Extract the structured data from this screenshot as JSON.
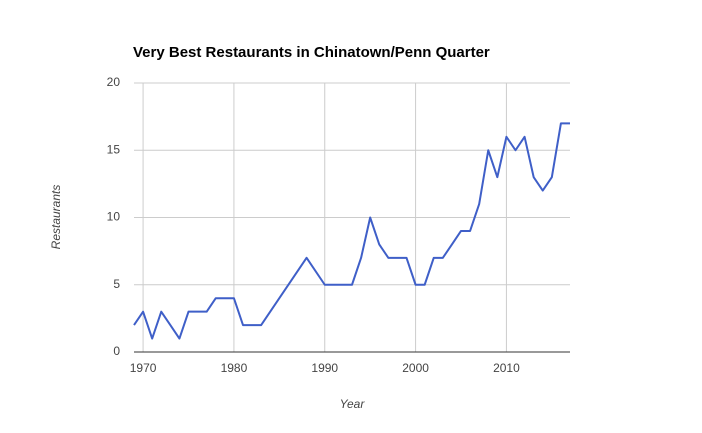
{
  "chart_data": {
    "type": "line",
    "title": "Very Best Restaurants in Chinatown/Penn Quarter",
    "x_label": "Year",
    "y_label": "Restaurants",
    "x": [
      1969,
      1970,
      1971,
      1972,
      1973,
      1974,
      1975,
      1976,
      1977,
      1978,
      1979,
      1980,
      1981,
      1982,
      1983,
      1988,
      1990,
      1991,
      1992,
      1993,
      1994,
      1995,
      1996,
      1997,
      1998,
      1999,
      2000,
      2001,
      2002,
      2003,
      2004,
      2005,
      2006,
      2007,
      2008,
      2009,
      2010,
      2011,
      2012,
      2013,
      2014,
      2015,
      2016,
      2017
    ],
    "series": [
      {
        "name": "Restaurants",
        "color": "#3f5fc8",
        "values": [
          2,
          3,
          1,
          3,
          2,
          1,
          3,
          3,
          3,
          4,
          4,
          4,
          2,
          2,
          2,
          7,
          5,
          5,
          5,
          5,
          7,
          10,
          8,
          7,
          7,
          7,
          5,
          5,
          7,
          7,
          8,
          9,
          9,
          11,
          15,
          13,
          16,
          15,
          16,
          13,
          12,
          13,
          17,
          17
        ]
      }
    ],
    "xlim": [
      1969,
      2017
    ],
    "xticks": [
      1970,
      1980,
      1990,
      2000,
      2010
    ],
    "ylim": [
      0,
      20
    ],
    "yticks": [
      0,
      5,
      10,
      15,
      20
    ],
    "grid": true
  }
}
